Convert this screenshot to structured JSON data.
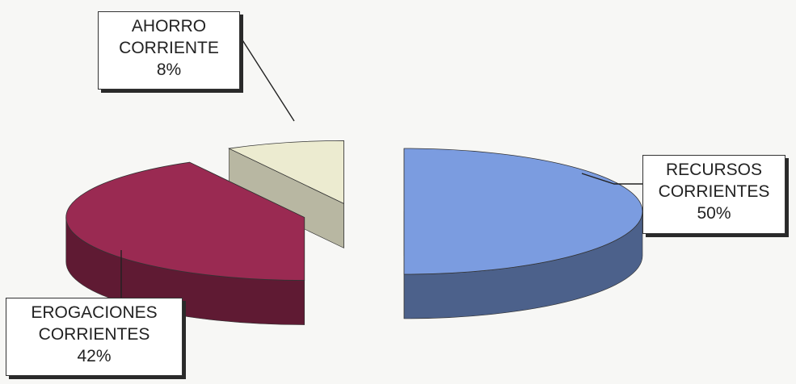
{
  "chart_data": {
    "type": "pie",
    "style": "3d-exploded",
    "slices": [
      {
        "label_line1": "RECURSOS",
        "label_line2": "CORRIENTES",
        "value": 50,
        "value_text": "50%",
        "color": "#7b9ce0"
      },
      {
        "label_line1": "EROGACIONES",
        "label_line2": "CORRIENTES",
        "value": 42,
        "value_text": "42%",
        "color": "#9a2a52"
      },
      {
        "label_line1": "AHORRO",
        "label_line2": "CORRIENTE",
        "value": 8,
        "value_text": "8%",
        "color": "#ecebd0"
      }
    ]
  }
}
